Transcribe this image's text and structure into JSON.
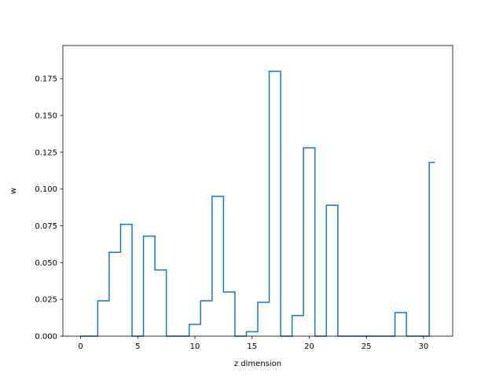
{
  "chart_data": {
    "type": "line",
    "drawstyle": "steps-mid",
    "xlabel": "z dimension",
    "ylabel": "w",
    "xlim": [
      -1.55,
      32.55
    ],
    "ylim": [
      0,
      0.1975
    ],
    "xticks": [
      0,
      5,
      10,
      15,
      20,
      25,
      30
    ],
    "yticks": [
      0.0,
      0.025,
      0.05,
      0.075,
      0.1,
      0.125,
      0.15,
      0.175
    ],
    "ytick_labels": [
      "0.000",
      "0.025",
      "0.050",
      "0.075",
      "0.100",
      "0.125",
      "0.150",
      "0.175"
    ],
    "grid": false,
    "series": [
      {
        "color": "#1f77b4",
        "x": [
          0,
          1,
          2,
          3,
          4,
          5,
          6,
          7,
          8,
          9,
          10,
          11,
          12,
          13,
          14,
          15,
          16,
          17,
          18,
          19,
          20,
          21,
          22,
          23,
          24,
          25,
          26,
          27,
          28,
          29,
          30,
          31
        ],
        "values": [
          0,
          0,
          0.024,
          0.057,
          0.076,
          0,
          0.068,
          0.045,
          0,
          0,
          0.008,
          0.024,
          0.095,
          0.03,
          0,
          0.003,
          0.023,
          0.18,
          0,
          0.014,
          0.128,
          0,
          0.089,
          0,
          0,
          0,
          0,
          0,
          0.016,
          0,
          0,
          0.118
        ]
      }
    ]
  }
}
